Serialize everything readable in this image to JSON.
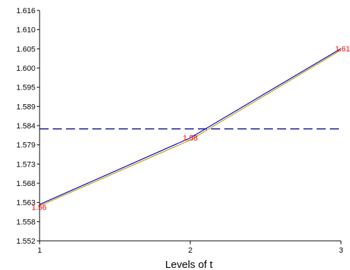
{
  "chart_data": {
    "type": "line",
    "title": "",
    "xlabel": "Levels of t",
    "ylabel": "",
    "x": [
      1,
      2,
      3
    ],
    "xticks": [
      "1",
      "2",
      "3"
    ],
    "xlim": [
      1,
      3
    ],
    "ylim": [
      1.552,
      1.616
    ],
    "yticks": [
      "1.552",
      "1.558",
      "1.563",
      "1.568",
      "1.573",
      "1.579",
      "1.584",
      "1.589",
      "1.595",
      "1.600",
      "1.605",
      "1.610",
      "1.616"
    ],
    "series": [
      {
        "values": [
          1.5621,
          1.5806,
          1.6054
        ],
        "color": "#0000cc"
      },
      {
        "values": [
          1.5617,
          1.58,
          1.605
        ],
        "color": "#b8a000"
      }
    ],
    "reference_line": {
      "y": 1.5831,
      "style": "dashed",
      "color": "#00008b"
    },
    "data_labels": [
      {
        "x": 1,
        "y": 1.5621,
        "text": "1.56"
      },
      {
        "x": 2,
        "y": 1.5806,
        "text": "1.58"
      },
      {
        "x": 3,
        "y": 1.6054,
        "text": "1.61"
      }
    ],
    "data_label_color": "#ff0000",
    "grid": false
  }
}
